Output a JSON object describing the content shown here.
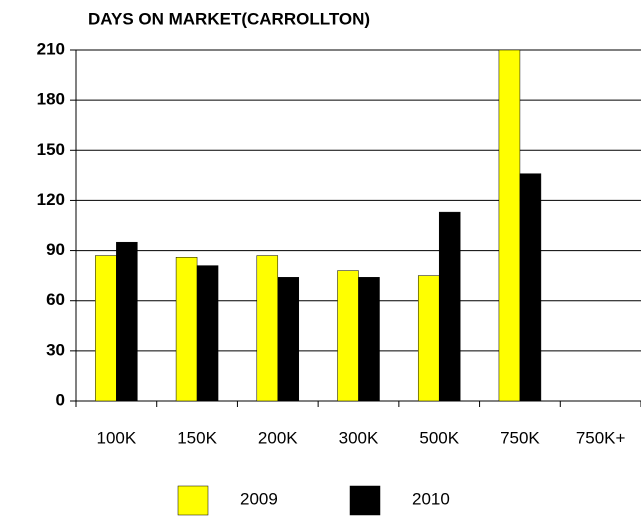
{
  "chart_data": {
    "type": "bar",
    "title": "DAYS ON MARKET(CARROLLTON)",
    "categories": [
      "100K",
      "150K",
      "200K",
      "300K",
      "500K",
      "750K",
      "750K+"
    ],
    "series": [
      {
        "name": "2009",
        "color": "#ffff00",
        "values": [
          87,
          86,
          87,
          78,
          75,
          210,
          null
        ]
      },
      {
        "name": "2010",
        "color": "#000000",
        "values": [
          95,
          81,
          74,
          74,
          113,
          136,
          null
        ]
      }
    ],
    "ylim": [
      0,
      210
    ],
    "yticks": [
      0,
      30,
      60,
      90,
      120,
      150,
      180,
      210
    ],
    "grid": true,
    "legend": "bottom"
  }
}
